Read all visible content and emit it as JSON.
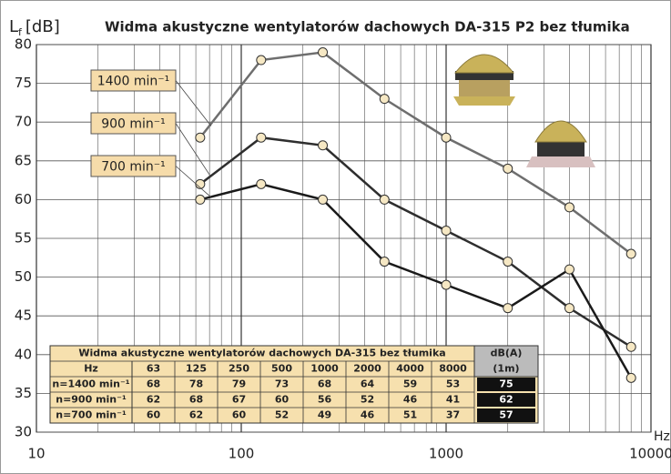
{
  "chart_data": {
    "type": "line",
    "title": "Widma akustyczne wentylatorów dachowych DA-315 P2 bez tłumika",
    "ylabel": {
      "main": "L",
      "sub": "f",
      "unit": "[dB]"
    },
    "xlabel": "Hz",
    "x": [
      63,
      125,
      250,
      500,
      1000,
      2000,
      4000,
      8000
    ],
    "xscale": "log",
    "xlim": [
      10,
      10000
    ],
    "xticks": [
      10,
      100,
      1000,
      10000
    ],
    "ylim": [
      30,
      80
    ],
    "yticks": [
      30,
      35,
      40,
      45,
      50,
      55,
      60,
      65,
      70,
      75,
      80
    ],
    "grid": true,
    "series": [
      {
        "name": "1400 min⁻¹",
        "row_label": "n=1400 min⁻¹",
        "color": "#6e6e6e",
        "values": [
          68,
          78,
          79,
          73,
          68,
          64,
          59,
          53
        ],
        "dba": 75
      },
      {
        "name": "900 min⁻¹",
        "row_label": "n=900 min⁻¹",
        "color": "#2e2e2e",
        "values": [
          62,
          68,
          67,
          60,
          56,
          52,
          46,
          41
        ],
        "dba": 62
      },
      {
        "name": "700 min⁻¹",
        "row_label": "n=700 min⁻¹",
        "color": "#1a1a1a",
        "values": [
          60,
          62,
          60,
          52,
          49,
          46,
          51,
          37
        ],
        "dba": 57
      }
    ],
    "table": {
      "title": "Widma akustyczne wentylatorów dachowych DA-315 bez tłumika",
      "hz_header": "Hz",
      "dba_header": "dB(A)",
      "dba_subheader": "(1m)"
    }
  }
}
